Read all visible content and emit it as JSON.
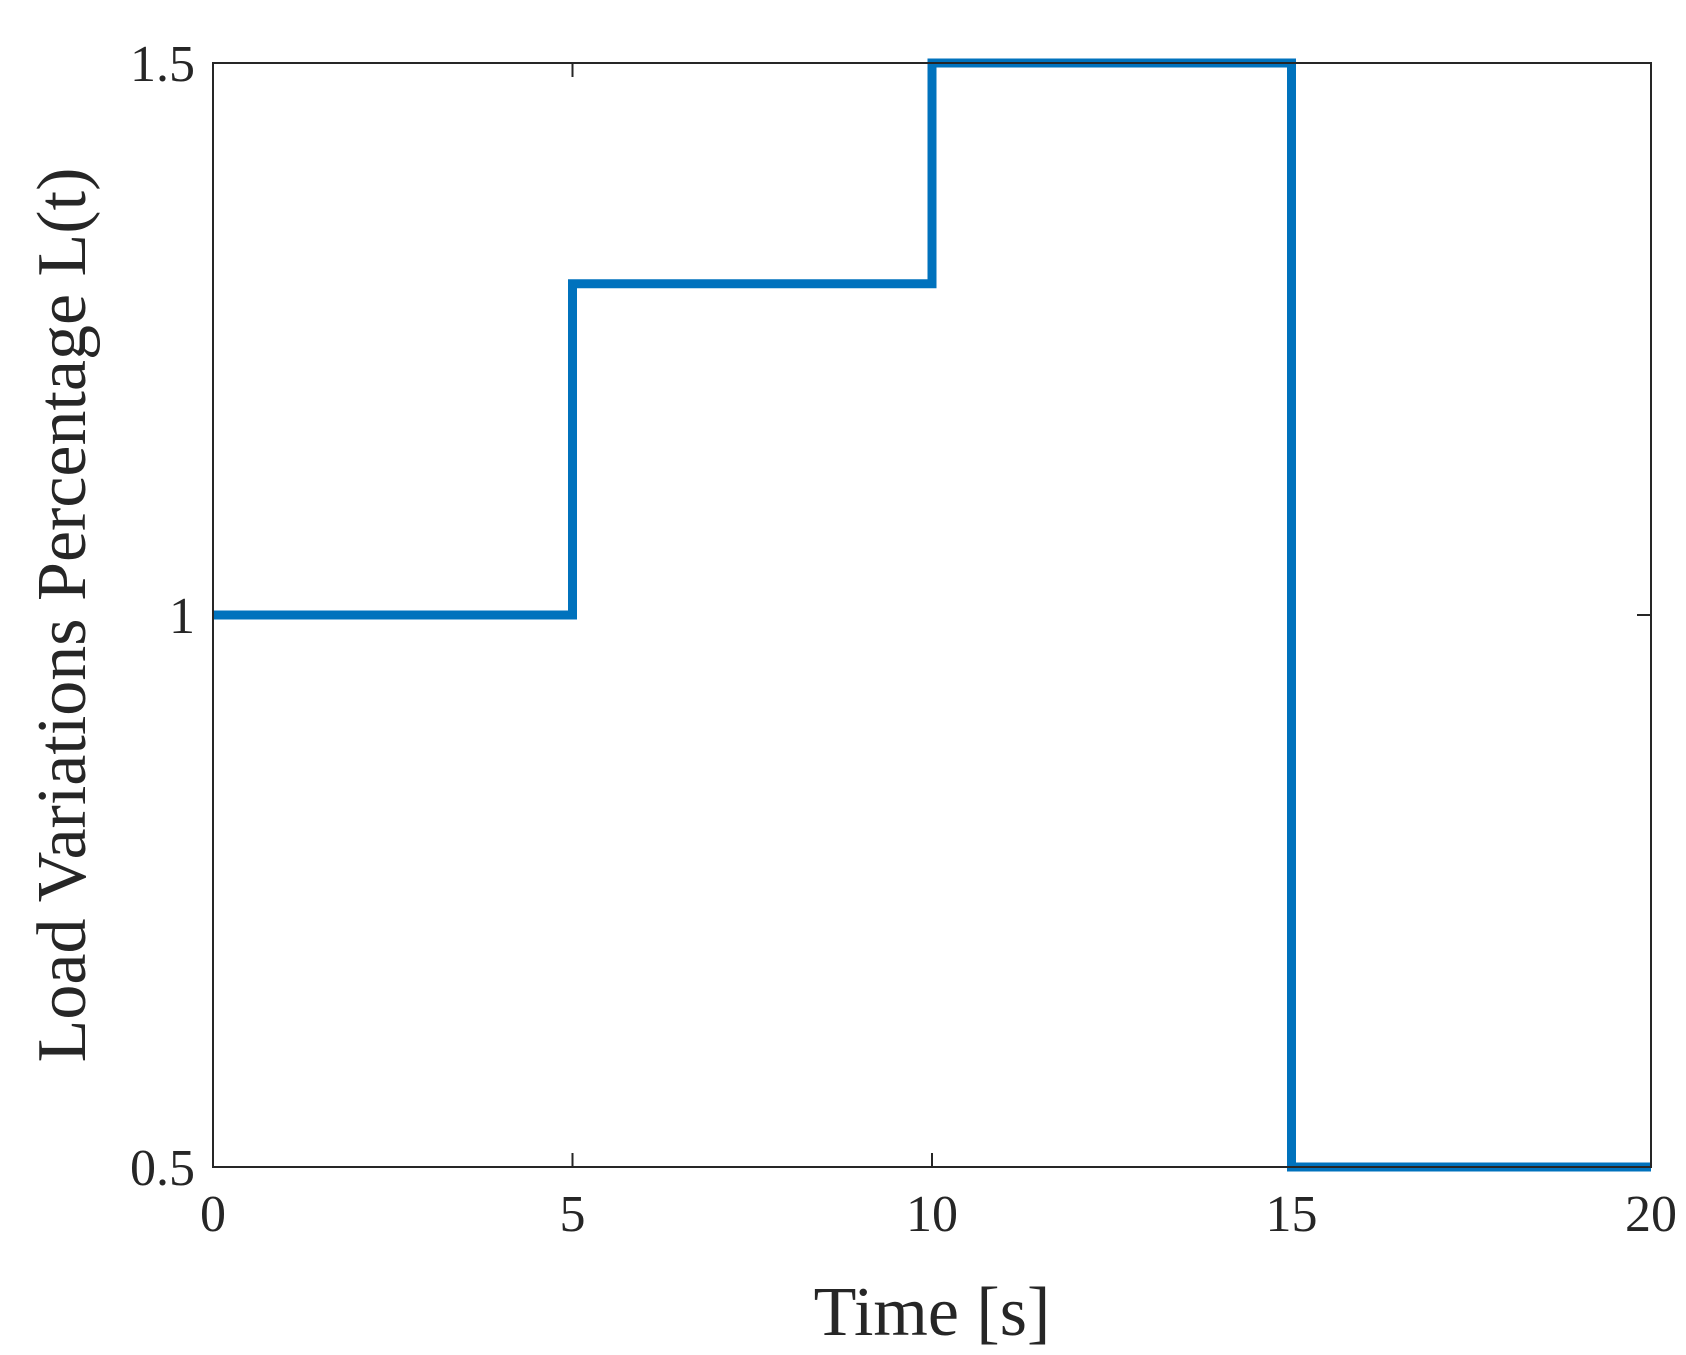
{
  "chart_data": {
    "type": "line",
    "step": true,
    "title": "",
    "xlabel": "Time [s]",
    "ylabel": "Load Variations Percentage L(t)",
    "xlim": [
      0,
      20
    ],
    "ylim": [
      0.5,
      1.5
    ],
    "xticks": [
      0,
      5,
      10,
      15,
      20
    ],
    "yticks": [
      0.5,
      1,
      1.5
    ],
    "xtick_labels": [
      "0",
      "5",
      "10",
      "15",
      "20"
    ],
    "ytick_labels": [
      "0.5",
      "1",
      "1.5"
    ],
    "grid": false,
    "line_color": "#0072BD",
    "axis_color": "#262626",
    "series": [
      {
        "x": [
          0,
          5,
          5,
          10,
          10,
          15,
          15,
          20
        ],
        "y": [
          1,
          1,
          1.3,
          1.3,
          1.5,
          1.5,
          0.5,
          0.5
        ]
      }
    ]
  }
}
